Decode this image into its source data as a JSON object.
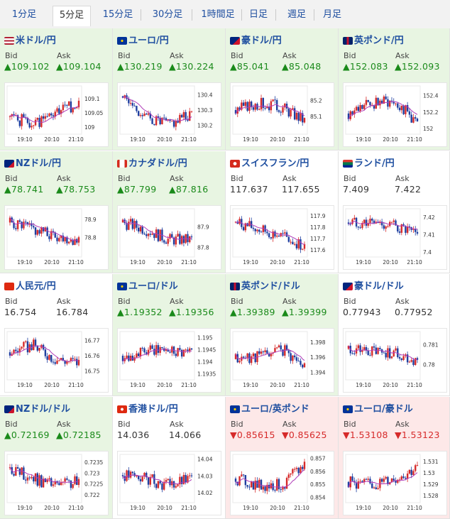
{
  "tabs": [
    "1分足",
    "5分足",
    "15分足",
    "30分足",
    "1時間足",
    "日足",
    "週足",
    "月足"
  ],
  "active_tab": "5分足",
  "labels": {
    "bid": "Bid",
    "ask": "Ask"
  },
  "time_ticks": [
    "19:10",
    "20:10",
    "21:10"
  ],
  "colors": {
    "up_bg": "#e8f5e2",
    "down_bg": "#fde8e8",
    "up_text": "#1a8a1a",
    "down_text": "#d62a2a",
    "candle_up": "#d62a2a",
    "candle_down": "#1f3fa0",
    "ma_line": "#b03cb8"
  },
  "pairs": [
    {
      "name": "米ドル/円",
      "flag": "us-jp-flag-icon",
      "dir": "up",
      "bid": "▲109.102",
      "ask": "▲109.104",
      "yticks": [
        "109.1",
        "109.05",
        "109"
      ],
      "ylim": [
        108.98,
        109.14
      ],
      "seed": 1,
      "trend": [
        0.3,
        0.1,
        0.4,
        0.7
      ]
    },
    {
      "name": "ユーロ/円",
      "flag": "eu-jp-flag-icon",
      "dir": "up",
      "bid": "▲130.219",
      "ask": "▲130.224",
      "yticks": [
        "130.4",
        "130.3",
        "130.2"
      ],
      "ylim": [
        130.15,
        130.45
      ],
      "seed": 2,
      "trend": [
        0.9,
        0.3,
        0.1,
        0.4
      ]
    },
    {
      "name": "豪ドル/円",
      "flag": "au-jp-flag-icon",
      "dir": "up",
      "bid": "▲85.041",
      "ask": "▲85.048",
      "yticks": [
        "85.2",
        "85.1"
      ],
      "ylim": [
        85.0,
        85.28
      ],
      "seed": 3,
      "trend": [
        0.5,
        0.7,
        0.6,
        0.2
      ]
    },
    {
      "name": "英ポンド/円",
      "flag": "gb-jp-flag-icon",
      "dir": "up",
      "bid": "▲152.083",
      "ask": "▲152.093",
      "yticks": [
        "152.4",
        "152.2",
        "152"
      ],
      "ylim": [
        151.95,
        152.5
      ],
      "seed": 4,
      "trend": [
        0.4,
        0.7,
        0.8,
        0.1
      ]
    },
    {
      "name": "NZドル/円",
      "flag": "nz-jp-flag-icon",
      "dir": "up",
      "bid": "▲78.741",
      "ask": "▲78.753",
      "yticks": [
        "78.9",
        "78.8"
      ],
      "ylim": [
        78.7,
        78.95
      ],
      "seed": 5,
      "trend": [
        0.8,
        0.6,
        0.4,
        0.3
      ]
    },
    {
      "name": "カナダドル/円",
      "flag": "ca-jp-flag-icon",
      "dir": "up",
      "bid": "▲87.799",
      "ask": "▲87.816",
      "yticks": [
        "87.9",
        "87.8"
      ],
      "ylim": [
        87.76,
        87.98
      ],
      "seed": 6,
      "trend": [
        0.8,
        0.6,
        0.3,
        0.3
      ]
    },
    {
      "name": "スイスフラン/円",
      "flag": "ch-jp-flag-icon",
      "dir": "flat",
      "bid": "117.637",
      "ask": "117.655",
      "yticks": [
        "117.9",
        "117.8",
        "117.7",
        "117.6"
      ],
      "ylim": [
        117.55,
        117.95
      ],
      "seed": 7,
      "trend": [
        0.8,
        0.6,
        0.4,
        0.1
      ]
    },
    {
      "name": "ランド/円",
      "flag": "za-jp-flag-icon",
      "dir": "flat",
      "bid": "7.409",
      "ask": "7.422",
      "yticks": [
        "7.42",
        "7.41",
        "7.4"
      ],
      "ylim": [
        7.398,
        7.424
      ],
      "seed": 8,
      "trend": [
        0.8,
        0.8,
        0.7,
        0.4
      ]
    },
    {
      "name": "人民元/円",
      "flag": "cn-jp-flag-icon",
      "dir": "flat",
      "bid": "16.754",
      "ask": "16.784",
      "yticks": [
        "16.77",
        "16.76",
        "16.75"
      ],
      "ylim": [
        16.745,
        16.775
      ],
      "seed": 9,
      "trend": [
        0.6,
        0.8,
        0.4,
        0.3
      ]
    },
    {
      "name": "ユーロ/ドル",
      "flag": "eu-us-flag-icon",
      "dir": "up",
      "bid": "▲1.19352",
      "ask": "▲1.19356",
      "yticks": [
        "1.195",
        "1.1945",
        "1.194",
        "1.1935"
      ],
      "ylim": [
        1.1933,
        1.1952
      ],
      "seed": 10,
      "trend": [
        0.5,
        0.6,
        0.7,
        0.6
      ]
    },
    {
      "name": "英ポンド/ドル",
      "flag": "gb-us-flag-icon",
      "dir": "up",
      "bid": "▲1.39389",
      "ask": "▲1.39399",
      "yticks": [
        "1.398",
        "1.396",
        "1.394"
      ],
      "ylim": [
        1.3932,
        1.3992
      ],
      "seed": 11,
      "trend": [
        0.4,
        0.5,
        0.7,
        0.2
      ]
    },
    {
      "name": "豪ドル/ドル",
      "flag": "au-us-flag-icon",
      "dir": "flat",
      "bid": "0.77943",
      "ask": "0.77952",
      "yticks": [
        "0.781",
        "0.78"
      ],
      "ylim": [
        0.7793,
        0.7816
      ],
      "seed": 12,
      "trend": [
        0.7,
        0.6,
        0.6,
        0.3
      ]
    },
    {
      "name": "NZドル/ドル",
      "flag": "nz-us-flag-icon",
      "dir": "up",
      "bid": "▲0.72169",
      "ask": "▲0.72185",
      "yticks": [
        "0.7235",
        "0.723",
        "0.7225",
        "0.722"
      ],
      "ylim": [
        0.7217,
        0.7238
      ],
      "seed": 13,
      "trend": [
        0.8,
        0.5,
        0.3,
        0.4
      ]
    },
    {
      "name": "香港ドル/円",
      "flag": "hk-jp-flag-icon",
      "dir": "flat",
      "bid": "14.036",
      "ask": "14.066",
      "yticks": [
        "14.04",
        "14.03",
        "14.02"
      ],
      "ylim": [
        14.015,
        14.042
      ],
      "seed": 14,
      "trend": [
        0.6,
        0.5,
        0.3,
        0.5
      ]
    },
    {
      "name": "ユーロ/英ポンド",
      "flag": "eu-gb-flag-icon",
      "dir": "down",
      "bid": "▼0.85615",
      "ask": "▼0.85625",
      "yticks": [
        "0.857",
        "0.856",
        "0.855",
        "0.854"
      ],
      "ylim": [
        0.8537,
        0.8572
      ],
      "seed": 15,
      "trend": [
        0.5,
        0.3,
        0.3,
        0.9
      ]
    },
    {
      "name": "ユーロ/豪ドル",
      "flag": "eu-au-flag-icon",
      "dir": "down",
      "bid": "▼1.53108",
      "ask": "▼1.53123",
      "yticks": [
        "1.531",
        "1.53",
        "1.529",
        "1.528"
      ],
      "ylim": [
        1.5275,
        1.5315
      ],
      "seed": 16,
      "trend": [
        0.4,
        0.3,
        0.5,
        0.8
      ]
    }
  ]
}
